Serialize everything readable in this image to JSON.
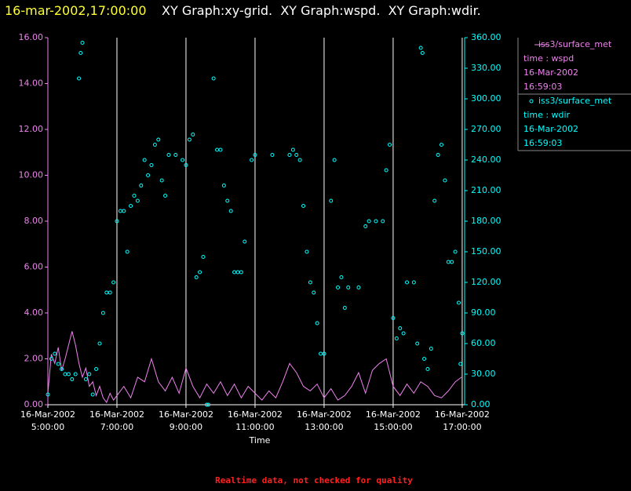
{
  "chart_data": {
    "type": "line",
    "title": "16-mar-2002,17:00:00",
    "subtitle": "XY Graph:xy-grid.  XY Graph:wspd.  XY Graph:wdir.",
    "xlabel": "Time",
    "footer": "Realtime data, not checked for quality",
    "grid": "x",
    "xlim": [
      5,
      17.07
    ],
    "xticks": [
      {
        "value": 5,
        "label": "16-Mar-2002\n5:00:00"
      },
      {
        "value": 7,
        "label": "16-Mar-2002\n7:00:00"
      },
      {
        "value": 9,
        "label": "16-Mar-2002\n9:00:00"
      },
      {
        "value": 11,
        "label": "16-Mar-2002\n11:00:00"
      },
      {
        "value": 13,
        "label": "16-Mar-2002\n13:00:00"
      },
      {
        "value": 15,
        "label": "16-Mar-2002\n15:00:00"
      },
      {
        "value": 17,
        "label": "16-Mar-2002\n17:00:00"
      }
    ],
    "ylim": [
      0,
      16
    ],
    "yticks": [
      {
        "value": 0,
        "label": "0.00"
      },
      {
        "value": 2,
        "label": "2.00"
      },
      {
        "value": 4,
        "label": "4.00"
      },
      {
        "value": 6,
        "label": "6.00"
      },
      {
        "value": 8,
        "label": "8.00"
      },
      {
        "value": 10,
        "label": "10.00"
      },
      {
        "value": 12,
        "label": "12.00"
      },
      {
        "value": 14,
        "label": "14.00"
      },
      {
        "value": 16,
        "label": "16.00"
      }
    ],
    "y2lim": [
      0,
      360
    ],
    "y2ticks": [
      {
        "value": 0,
        "label": "0.00"
      },
      {
        "value": 30,
        "label": "30.00"
      },
      {
        "value": 60,
        "label": "60.00"
      },
      {
        "value": 90,
        "label": "90.00"
      },
      {
        "value": 120,
        "label": "120.00"
      },
      {
        "value": 150,
        "label": "150.00"
      },
      {
        "value": 180,
        "label": "180.00"
      },
      {
        "value": 210,
        "label": "210.00"
      },
      {
        "value": 240,
        "label": "240.00"
      },
      {
        "value": 270,
        "label": "270.00"
      },
      {
        "value": 300,
        "label": "300.00"
      },
      {
        "value": 330,
        "label": "330.00"
      },
      {
        "value": 360,
        "label": "360.00"
      }
    ],
    "series": [
      {
        "name": "iss3/surface_met",
        "legend_text": [
          "time : wspd",
          "16-Mar-2002",
          "16:59:03"
        ],
        "type": "line",
        "axis": "y",
        "color": "#ee82ee",
        "x": [
          5.0,
          5.1,
          5.2,
          5.3,
          5.4,
          5.5,
          5.6,
          5.7,
          5.8,
          5.9,
          6.0,
          6.1,
          6.2,
          6.3,
          6.4,
          6.5,
          6.6,
          6.7,
          6.8,
          6.9,
          7.0,
          7.2,
          7.4,
          7.6,
          7.8,
          8.0,
          8.2,
          8.4,
          8.6,
          8.8,
          9.0,
          9.2,
          9.4,
          9.6,
          9.8,
          10.0,
          10.2,
          10.4,
          10.6,
          10.8,
          11.0,
          11.2,
          11.4,
          11.6,
          11.8,
          12.0,
          12.2,
          12.4,
          12.6,
          12.8,
          13.0,
          13.2,
          13.4,
          13.6,
          13.8,
          14.0,
          14.2,
          14.4,
          14.6,
          14.8,
          15.0,
          15.2,
          15.4,
          15.6,
          15.8,
          16.0,
          16.2,
          16.4,
          16.6,
          16.8,
          16.98
        ],
        "values": [
          0.5,
          2.2,
          1.8,
          2.5,
          1.5,
          2.0,
          2.6,
          3.2,
          2.6,
          1.8,
          1.2,
          1.6,
          0.8,
          1.0,
          0.4,
          0.8,
          0.3,
          0.1,
          0.5,
          0.2,
          0.4,
          0.8,
          0.3,
          1.2,
          1.0,
          2.0,
          1.0,
          0.6,
          1.2,
          0.5,
          1.6,
          0.8,
          0.3,
          0.9,
          0.5,
          1.0,
          0.4,
          0.9,
          0.3,
          0.8,
          0.5,
          0.2,
          0.6,
          0.3,
          1.0,
          1.8,
          1.4,
          0.8,
          0.6,
          0.9,
          0.3,
          0.7,
          0.2,
          0.4,
          0.8,
          1.4,
          0.5,
          1.5,
          1.8,
          2.0,
          0.8,
          0.4,
          0.9,
          0.5,
          1.0,
          0.8,
          0.4,
          0.3,
          0.6,
          1.0,
          1.2
        ]
      },
      {
        "name": "iss3/surface_met",
        "legend_text": [
          "time : wdir",
          "16-Mar-2002",
          "16:59:03"
        ],
        "type": "scatter",
        "axis": "y2",
        "color": "#00ffff",
        "x": [
          5.0,
          5.1,
          5.2,
          5.3,
          5.4,
          5.5,
          5.6,
          5.7,
          5.8,
          5.9,
          5.95,
          6.0,
          6.1,
          6.2,
          6.3,
          6.4,
          6.5,
          6.6,
          6.7,
          6.8,
          6.9,
          7.0,
          7.1,
          7.2,
          7.3,
          7.4,
          7.5,
          7.6,
          7.7,
          7.8,
          7.9,
          8.0,
          8.1,
          8.2,
          8.3,
          8.4,
          8.5,
          8.7,
          8.9,
          9.0,
          9.1,
          9.2,
          9.3,
          9.4,
          9.5,
          9.6,
          9.65,
          9.8,
          9.9,
          10.0,
          10.1,
          10.2,
          10.3,
          10.4,
          10.5,
          10.6,
          10.7,
          10.9,
          11.0,
          11.5,
          12.0,
          12.1,
          12.2,
          12.3,
          12.4,
          12.5,
          12.6,
          12.7,
          12.8,
          12.9,
          13.0,
          13.2,
          13.3,
          13.4,
          13.5,
          13.6,
          13.7,
          14.0,
          14.2,
          14.3,
          14.5,
          14.7,
          14.8,
          14.9,
          15.0,
          15.1,
          15.2,
          15.3,
          15.4,
          15.6,
          15.7,
          15.8,
          15.85,
          15.9,
          16.0,
          16.1,
          16.2,
          16.3,
          16.4,
          16.5,
          16.6,
          16.7,
          16.8,
          16.9,
          16.95,
          17.0
        ],
        "values": [
          10,
          45,
          50,
          40,
          35,
          30,
          30,
          25,
          30,
          320,
          345,
          355,
          25,
          30,
          10,
          35,
          60,
          90,
          110,
          110,
          120,
          180,
          190,
          190,
          150,
          195,
          205,
          200,
          215,
          240,
          225,
          235,
          255,
          260,
          220,
          205,
          245,
          245,
          240,
          235,
          260,
          265,
          125,
          130,
          145,
          0,
          0,
          320,
          250,
          250,
          215,
          200,
          190,
          130,
          130,
          130,
          160,
          240,
          245,
          245,
          245,
          250,
          245,
          240,
          195,
          150,
          120,
          110,
          80,
          50,
          50,
          200,
          240,
          115,
          125,
          95,
          115,
          115,
          175,
          180,
          180,
          180,
          230,
          255,
          85,
          65,
          75,
          70,
          120,
          120,
          60,
          350,
          345,
          45,
          35,
          55,
          200,
          245,
          255,
          220,
          140,
          140,
          150,
          100,
          40,
          70
        ]
      }
    ]
  }
}
